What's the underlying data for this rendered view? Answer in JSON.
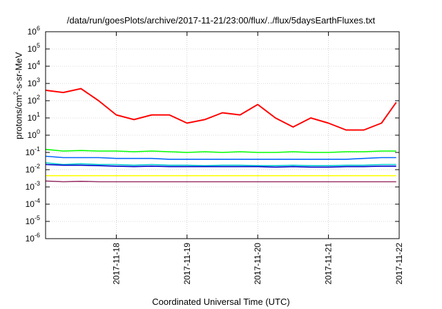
{
  "chart_data": {
    "type": "line",
    "title": "/data/run/goesPlots/archive/2017-11-21/23:00/flux/../flux/5daysEarthFluxes.txt",
    "xlabel": "Coordinated Universal Time (UTC)",
    "ylabel_prefix": "protons/cm",
    "ylabel_sup": "2",
    "ylabel_suffix": "-s-sr-MeV",
    "y_scale": "log",
    "ylim": [
      1e-06,
      1000000.0
    ],
    "y_ticks": [
      {
        "base": "10",
        "exp": "-6",
        "value": 1e-06
      },
      {
        "base": "10",
        "exp": "-5",
        "value": 1e-05
      },
      {
        "base": "10",
        "exp": "-4",
        "value": 0.0001
      },
      {
        "base": "10",
        "exp": "-3",
        "value": 0.001
      },
      {
        "base": "10",
        "exp": "-2",
        "value": 0.01
      },
      {
        "base": "10",
        "exp": "-1",
        "value": 0.1
      },
      {
        "base": "10",
        "exp": "0",
        "value": 1
      },
      {
        "base": "10",
        "exp": "1",
        "value": 10
      },
      {
        "base": "10",
        "exp": "2",
        "value": 100
      },
      {
        "base": "10",
        "exp": "3",
        "value": 1000
      },
      {
        "base": "10",
        "exp": "4",
        "value": 10000
      },
      {
        "base": "10",
        "exp": "5",
        "value": 100000
      },
      {
        "base": "10",
        "exp": "6",
        "value": 1000000
      }
    ],
    "xlim": [
      "2017-11-17T00:00",
      "2017-11-22T00:00"
    ],
    "x_ticks": [
      "2017-11-18",
      "2017-11-19",
      "2017-11-20",
      "2017-11-21",
      "2017-11-22"
    ],
    "grid": true,
    "x": [
      "2017-11-17T00:00",
      "2017-11-17T06:00",
      "2017-11-17T12:00",
      "2017-11-17T18:00",
      "2017-11-18T00:00",
      "2017-11-18T06:00",
      "2017-11-18T12:00",
      "2017-11-18T18:00",
      "2017-11-19T00:00",
      "2017-11-19T06:00",
      "2017-11-19T12:00",
      "2017-11-19T18:00",
      "2017-11-20T00:00",
      "2017-11-20T06:00",
      "2017-11-20T12:00",
      "2017-11-20T18:00",
      "2017-11-21T00:00",
      "2017-11-21T06:00",
      "2017-11-21T12:00",
      "2017-11-21T18:00",
      "2017-11-21T23:00"
    ],
    "series": [
      {
        "color": "#ff0000",
        "values": [
          400,
          300,
          500,
          100,
          15,
          8,
          15,
          15,
          5,
          8,
          20,
          15,
          60,
          10,
          3,
          10,
          5,
          2,
          2,
          5,
          80
        ]
      },
      {
        "color": "#00ff00",
        "values": [
          0.15,
          0.12,
          0.13,
          0.12,
          0.12,
          0.11,
          0.12,
          0.11,
          0.1,
          0.11,
          0.1,
          0.11,
          0.1,
          0.1,
          0.11,
          0.1,
          0.1,
          0.11,
          0.11,
          0.12,
          0.12
        ]
      },
      {
        "color": "#0066ff",
        "values": [
          0.06,
          0.05,
          0.05,
          0.05,
          0.045,
          0.045,
          0.045,
          0.04,
          0.04,
          0.04,
          0.04,
          0.04,
          0.04,
          0.04,
          0.04,
          0.04,
          0.04,
          0.04,
          0.045,
          0.05,
          0.05
        ]
      },
      {
        "color": "#00cccc",
        "values": [
          0.025,
          0.02,
          0.022,
          0.02,
          0.02,
          0.018,
          0.02,
          0.018,
          0.018,
          0.017,
          0.018,
          0.018,
          0.017,
          0.017,
          0.018,
          0.017,
          0.017,
          0.018,
          0.018,
          0.02,
          0.02
        ]
      },
      {
        "color": "#0000cc",
        "values": [
          0.02,
          0.018,
          0.018,
          0.017,
          0.016,
          0.015,
          0.016,
          0.015,
          0.015,
          0.015,
          0.015,
          0.015,
          0.015,
          0.014,
          0.015,
          0.014,
          0.014,
          0.015,
          0.015,
          0.016,
          0.016
        ]
      },
      {
        "color": "#ffff00",
        "values": [
          0.0045,
          0.0045,
          0.0045,
          0.0045,
          0.0045,
          0.0045,
          0.0045,
          0.0045,
          0.0045,
          0.0045,
          0.0045,
          0.0045,
          0.0045,
          0.0045,
          0.0045,
          0.0045,
          0.0045,
          0.0045,
          0.0045,
          0.0045,
          0.0045
        ]
      },
      {
        "color": "#993366",
        "values": [
          0.0022,
          0.002,
          0.0021,
          0.002,
          0.002,
          0.002,
          0.002,
          0.002,
          0.002,
          0.002,
          0.002,
          0.002,
          0.002,
          0.002,
          0.002,
          0.002,
          0.002,
          0.002,
          0.002,
          0.002,
          0.002
        ]
      }
    ]
  }
}
